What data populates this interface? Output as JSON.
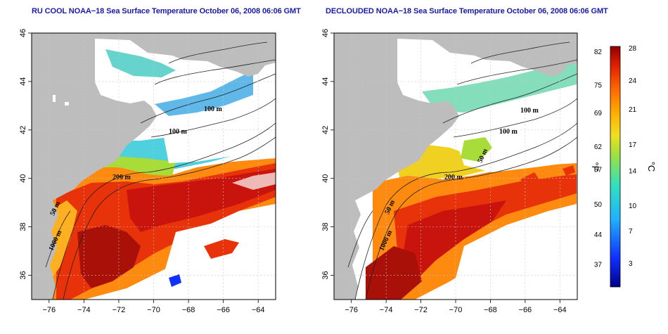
{
  "maps": [
    {
      "id": "left",
      "title": "RU COOL NOAA−18 Sea Surface Temperature October 06, 2008 06:06 GMT",
      "contour_labels": [
        "100 m",
        "100 m",
        "200 m",
        "50 m",
        "1000 m"
      ]
    },
    {
      "id": "right",
      "title": "DECLOUDED NOAA−18 Sea Surface Temperature October 06, 2008 06:06 GMT",
      "contour_labels": [
        "100 m",
        "100 m",
        "200 m",
        "50 m",
        "50 m",
        "1000 m"
      ]
    }
  ],
  "axes": {
    "longitude_ticks": [
      "−76",
      "−74",
      "−72",
      "−70",
      "−68",
      "−66",
      "−64"
    ],
    "latitude_ticks": [
      "36",
      "38",
      "40",
      "42",
      "44",
      "46"
    ]
  },
  "colorbar": {
    "unit_f": "°F",
    "unit_c": "°C",
    "f_ticks": [
      "82",
      "75",
      "69",
      "62",
      "57",
      "50",
      "44",
      "37"
    ],
    "c_ticks": [
      "28",
      "24",
      "21",
      "17",
      "14",
      "10",
      "7",
      "3"
    ]
  },
  "colors": {
    "land": "#bdbdbd",
    "cloud": "#ffffff",
    "title": "#1a1aa8",
    "warm": "#c81a0e",
    "cool": "#2aa0e0"
  }
}
